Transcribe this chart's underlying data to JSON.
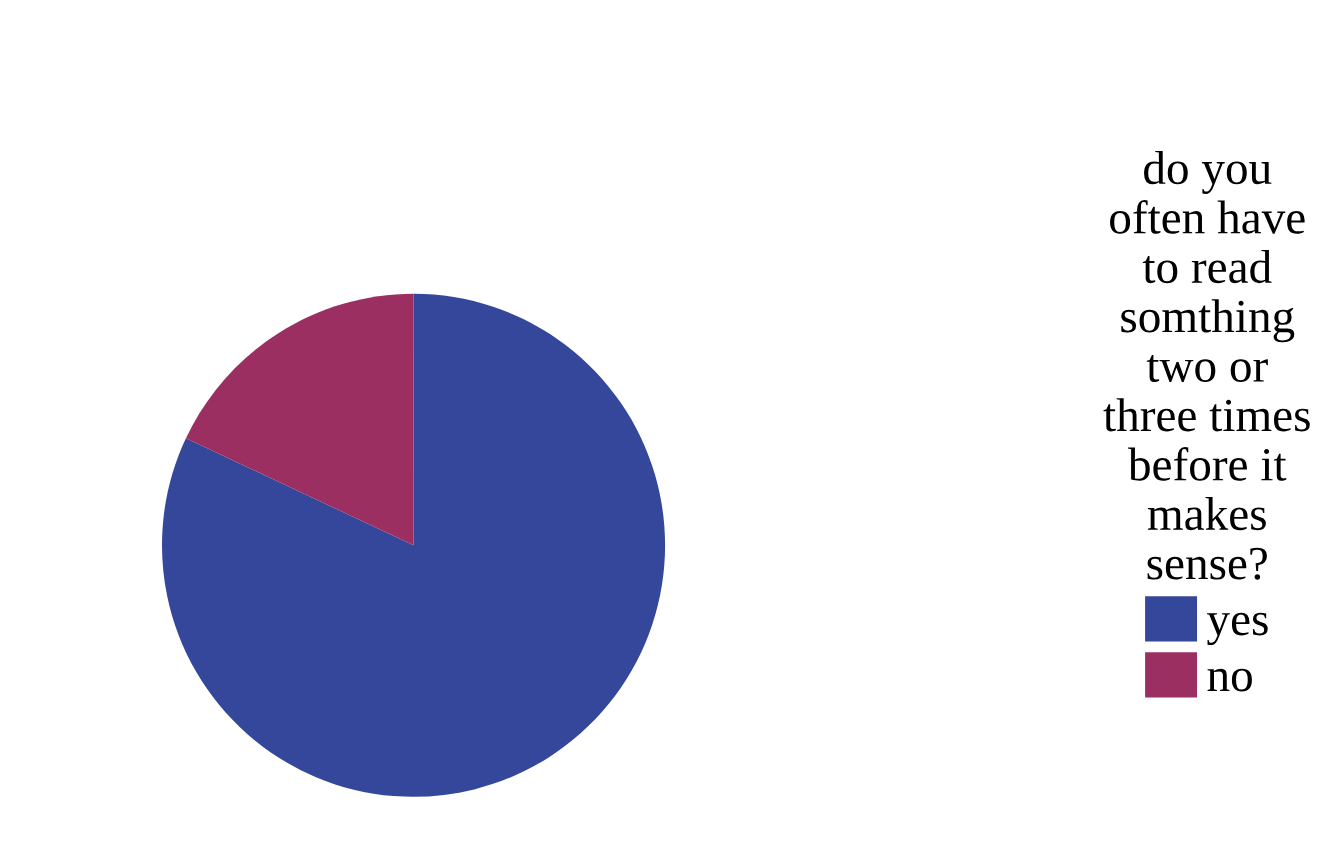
{
  "chart_data": {
    "type": "pie",
    "legend_title": "do you\noften have\nto read\nsomthing\ntwo or\nthree times\nbefore it\nmakes\nsense?",
    "categories": [
      "yes",
      "no"
    ],
    "values": [
      82,
      18
    ],
    "colors": [
      "#34479a",
      "#9b2f62"
    ],
    "legend": "right"
  }
}
